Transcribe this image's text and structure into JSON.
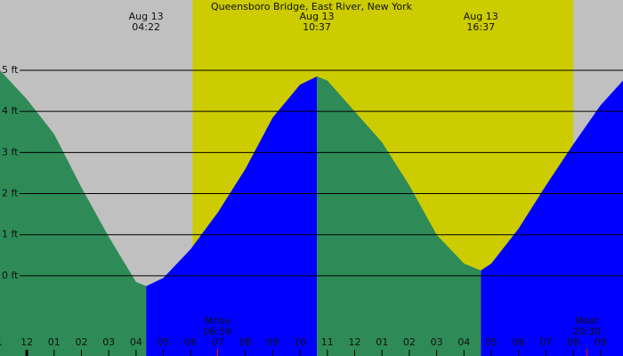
{
  "chart_data": {
    "type": "tide",
    "title": "Queensboro Bridge, East River, New York",
    "xlim": [
      -0.98,
      21.82
    ],
    "ylim": [
      -1.95,
      6.71
    ],
    "yticks": [
      {
        "value": 0,
        "label": "0 ft"
      },
      {
        "value": 1,
        "label": "1 ft"
      },
      {
        "value": 2,
        "label": "2 ft"
      },
      {
        "value": 3,
        "label": "3 ft"
      },
      {
        "value": 4,
        "label": "4 ft"
      },
      {
        "value": 5,
        "label": "5 ft"
      }
    ],
    "xticks": [
      {
        "value": -1,
        "label": "1"
      },
      {
        "value": 0,
        "label": "12"
      },
      {
        "value": 1,
        "label": "01"
      },
      {
        "value": 2,
        "label": "02"
      },
      {
        "value": 3,
        "label": "03"
      },
      {
        "value": 4,
        "label": "04"
      },
      {
        "value": 5,
        "label": "05"
      },
      {
        "value": 6,
        "label": "06"
      },
      {
        "value": 7,
        "label": "07"
      },
      {
        "value": 8,
        "label": "08"
      },
      {
        "value": 9,
        "label": "09"
      },
      {
        "value": 10,
        "label": "10"
      },
      {
        "value": 11,
        "label": "11"
      },
      {
        "value": 12,
        "label": "12"
      },
      {
        "value": 13,
        "label": "01"
      },
      {
        "value": 14,
        "label": "02"
      },
      {
        "value": 15,
        "label": "03"
      },
      {
        "value": 16,
        "label": "04"
      },
      {
        "value": 17,
        "label": "05"
      },
      {
        "value": 18,
        "label": "06"
      },
      {
        "value": 19,
        "label": "07"
      },
      {
        "value": 20,
        "label": "08"
      },
      {
        "value": 21,
        "label": "09"
      }
    ],
    "grid": true,
    "background": "#c0c0c0",
    "daylight_color": "#cccc00",
    "daylight": [
      6.07,
      20.0
    ],
    "series": [
      {
        "color": "#2e8b57",
        "x": [
          -0.98,
          0,
          1,
          2,
          3,
          4,
          4.37
        ],
        "values": [
          5.0,
          4.3,
          3.45,
          2.15,
          0.95,
          -0.15,
          -0.25
        ]
      },
      {
        "color": "#0000ff",
        "x": [
          4.37,
          5,
          6,
          7,
          8,
          9,
          10,
          10.62
        ],
        "values": [
          -0.25,
          -0.05,
          0.65,
          1.55,
          2.6,
          3.85,
          4.65,
          4.85
        ]
      },
      {
        "color": "#2e8b57",
        "x": [
          10.62,
          11,
          12,
          13,
          14,
          15,
          16,
          16.62
        ],
        "values": [
          4.85,
          4.75,
          4.0,
          3.25,
          2.2,
          1.0,
          0.3,
          0.13
        ]
      },
      {
        "color": "#0000ff",
        "x": [
          16.62,
          17,
          18,
          19,
          20,
          21,
          21.82
        ],
        "values": [
          0.13,
          0.3,
          1.15,
          2.2,
          3.2,
          4.15,
          4.75
        ]
      }
    ],
    "extremes": [
      {
        "date": "Aug 13",
        "time": "04:22"
      },
      {
        "date": "Aug 13",
        "time": "10:37"
      },
      {
        "date": "Aug 13",
        "time": "16:37"
      }
    ],
    "moon": [
      {
        "label": "Mrise",
        "time": "06:59"
      },
      {
        "label": "Mset",
        "time": "20:30"
      }
    ]
  }
}
